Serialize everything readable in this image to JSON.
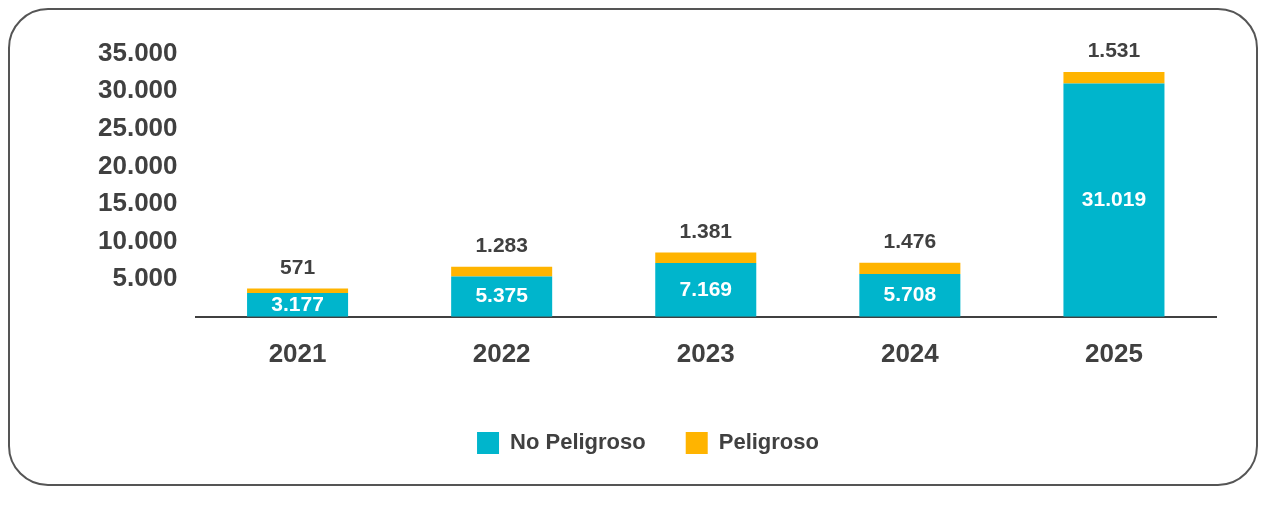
{
  "chart_data": {
    "type": "bar",
    "stacked": true,
    "categories": [
      "2021",
      "2022",
      "2023",
      "2024",
      "2025"
    ],
    "series": [
      {
        "name": "No Peligroso",
        "color": "#00b5cc",
        "values": [
          3177,
          5375,
          7169,
          5708,
          31019
        ],
        "value_labels": [
          "3.177",
          "5.375",
          "7.169",
          "5.708",
          "31.019"
        ]
      },
      {
        "name": "Peligroso",
        "color": "#ffb400",
        "values": [
          571,
          1283,
          1381,
          1476,
          1531
        ],
        "value_labels": [
          "571",
          "1.283",
          "1.381",
          "1.476",
          "1.531"
        ]
      }
    ],
    "ylim": [
      0,
      35000
    ],
    "yticks": [
      {
        "value": 5000,
        "label": "5.000"
      },
      {
        "value": 10000,
        "label": "10.000"
      },
      {
        "value": 15000,
        "label": "15.000"
      },
      {
        "value": 20000,
        "label": "20.000"
      },
      {
        "value": 25000,
        "label": "25.000"
      },
      {
        "value": 30000,
        "label": "30.000"
      },
      {
        "value": 35000,
        "label": "35.000"
      }
    ],
    "grid": false,
    "legend": "bottom"
  }
}
